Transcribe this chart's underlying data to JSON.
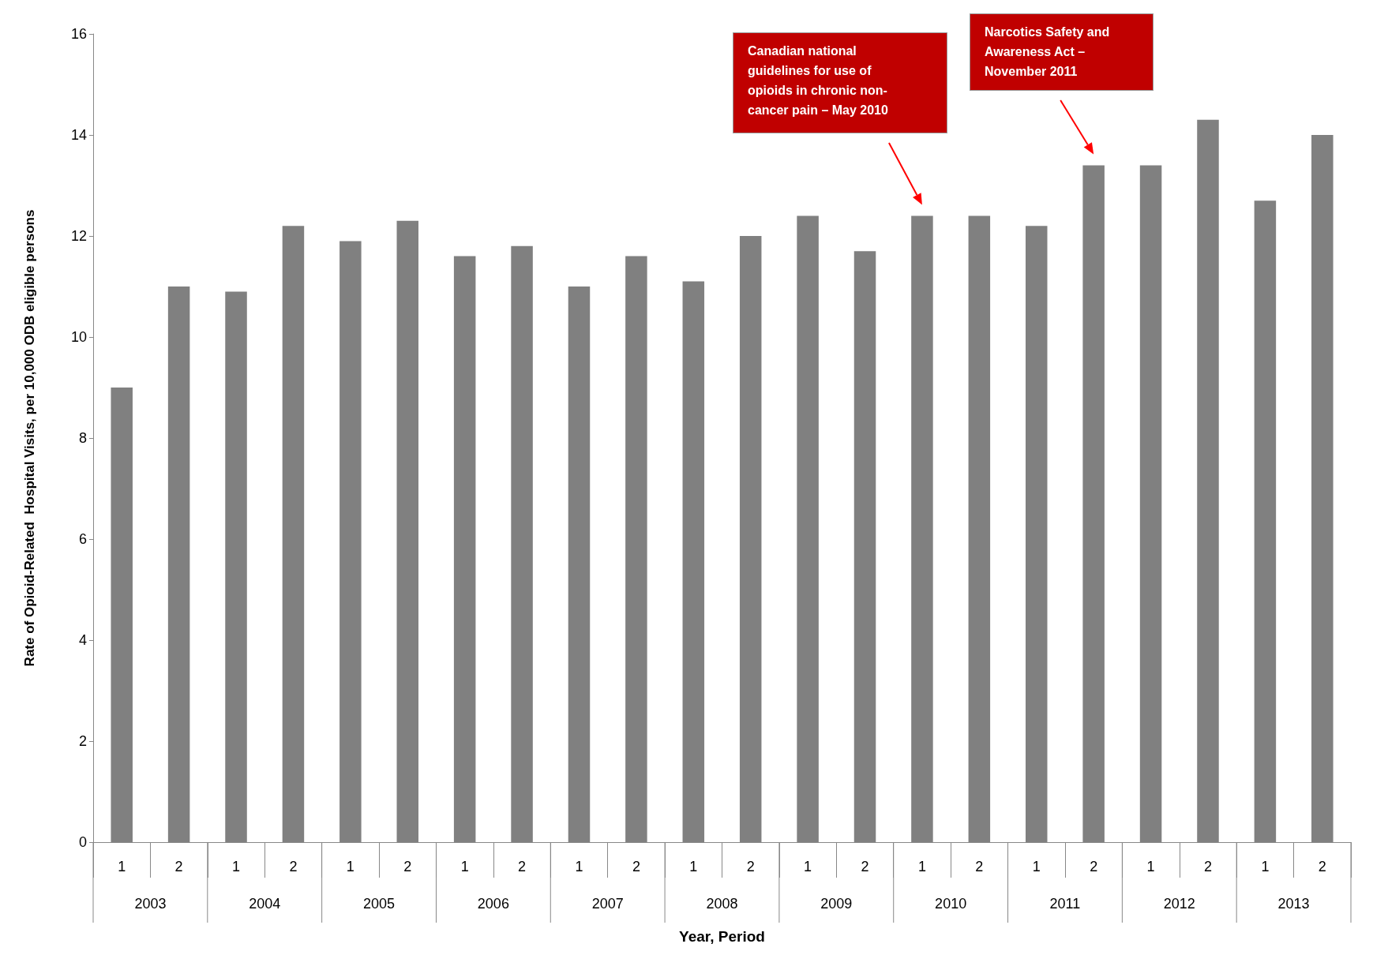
{
  "chart_data": {
    "type": "bar",
    "xlabel": "Year, Period",
    "ylabel": "Rate of Opioid-Related  Hospital Visits, per 10,000 ODB eligible persons",
    "categories": [
      "1",
      "2",
      "1",
      "2",
      "1",
      "2",
      "1",
      "2",
      "1",
      "2",
      "1",
      "2",
      "1",
      "2",
      "1",
      "2",
      "1",
      "2",
      "1",
      "2",
      "1",
      "2"
    ],
    "values": [
      9.0,
      11.0,
      10.9,
      12.2,
      11.9,
      12.3,
      11.6,
      11.8,
      11.0,
      11.6,
      11.1,
      12.0,
      12.4,
      11.7,
      12.4,
      12.4,
      12.2,
      13.4,
      13.4,
      14.3,
      12.7,
      14.0
    ],
    "color": "#808080",
    "ylim": [
      0,
      16
    ],
    "yticks": [
      0,
      2,
      4,
      6,
      8,
      10,
      12,
      14,
      16
    ],
    "grid": false,
    "annotations": [
      "2003",
      "2004",
      "2005",
      "2006",
      "2007",
      "2008",
      "2009",
      "2010",
      "2011",
      "2012",
      "2013",
      "Canadian national\nguidelines for use of\nopioids in chronic non-\ncancer pain – May 2010",
      "Narcotics Safety and\nAwareness Act –\nNovember 2011"
    ]
  }
}
